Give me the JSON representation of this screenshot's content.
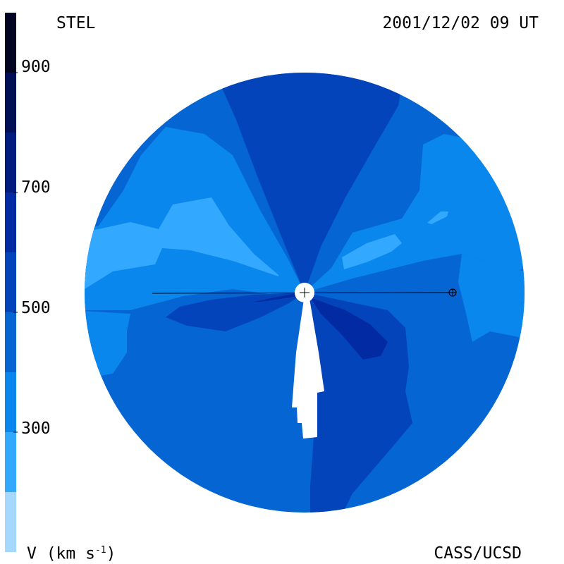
{
  "header": {
    "left_label": "STEL",
    "right_label": "2001/12/02 09 UT"
  },
  "footer": {
    "left_label": "V (km s",
    "left_superscript": "-1",
    "left_suffix": ")",
    "right_label": "CASS/UCSD"
  },
  "colorbar": {
    "tick_labels": [
      "900",
      "700",
      "500",
      "300"
    ],
    "tick_values": [
      900,
      700,
      500,
      300
    ],
    "range": [
      100,
      1000
    ],
    "bands": [
      {
        "from": 100,
        "to": 200,
        "color": "#a6d8ff"
      },
      {
        "from": 200,
        "to": 300,
        "color": "#33a8ff"
      },
      {
        "from": 300,
        "to": 400,
        "color": "#0a87ec"
      },
      {
        "from": 400,
        "to": 500,
        "color": "#0565d2"
      },
      {
        "from": 500,
        "to": 600,
        "color": "#0444bb"
      },
      {
        "from": 600,
        "to": 700,
        "color": "#022aa2"
      },
      {
        "from": 700,
        "to": 800,
        "color": "#011a7e"
      },
      {
        "from": 800,
        "to": 900,
        "color": "#010f57"
      },
      {
        "from": 900,
        "to": 1000,
        "color": "#020522"
      }
    ]
  },
  "colors": {
    "v200_300": "#33a8ff",
    "v300_400": "#0a87ec",
    "v400_500": "#0565d2",
    "v500_600": "#0444bb",
    "v600_700": "#022aa2"
  }
}
